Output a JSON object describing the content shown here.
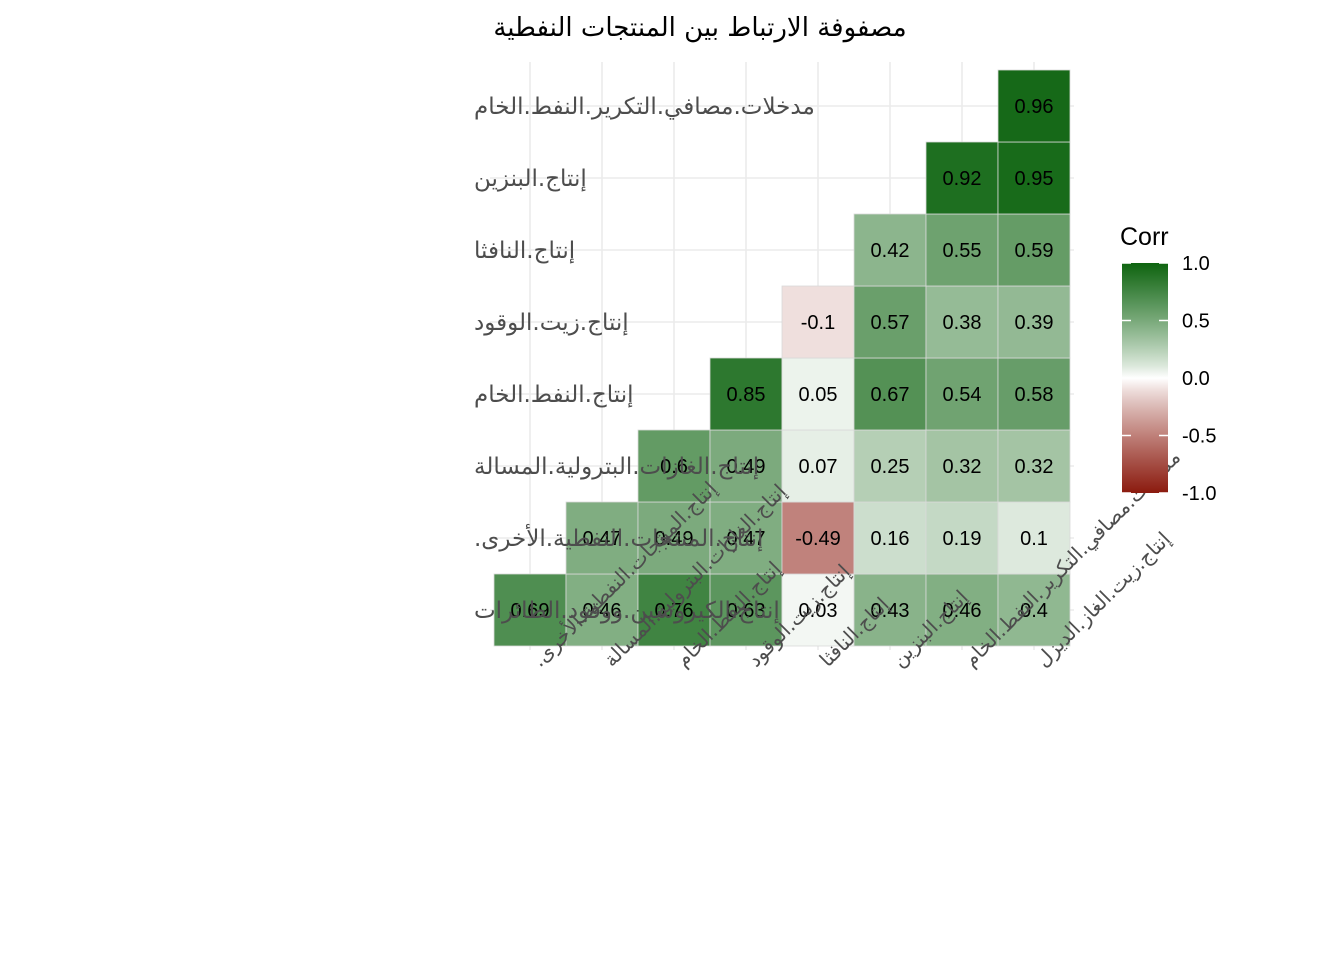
{
  "chart_data": {
    "type": "heatmap",
    "title": "مصفوفة الارتباط بين المنتجات النفطية",
    "x_categories": [
      "إنتاج.المنتجات.النفطية.الأخرى.",
      "إنتاج.الغازات.البترولية.المسالة",
      "إنتاج.النفط.الخام",
      "إنتاج.زيت.الوقود",
      "إنتاج.النافثا",
      "إنتاج.البنزين",
      "مدخلات.مصافي.التكرير.النفط.الخام",
      "إنتاج.زيت.الغاز.الديزل"
    ],
    "y_categories": [
      "إنتاج.الكيروسين.ووقود.الطائرات",
      "إنتاج.المنتجات.النفطية.الأخرى.",
      "إنتاج.الغازات.البترولية.المسالة",
      "إنتاج.النفط.الخام",
      "إنتاج.زيت.الوقود",
      "إنتاج.النافثا",
      "إنتاج.البنزين",
      "مدخلات.مصافي.التكرير.النفط.الخام"
    ],
    "cells": [
      {
        "x": "إنتاج.المنتجات.النفطية.الأخرى.",
        "y": "إنتاج.الكيروسين.ووقود.الطائرات",
        "value": 0.69,
        "label": "0.69"
      },
      {
        "x": "إنتاج.الغازات.البترولية.المسالة",
        "y": "إنتاج.الكيروسين.ووقود.الطائرات",
        "value": 0.46,
        "label": "0.46"
      },
      {
        "x": "إنتاج.النفط.الخام",
        "y": "إنتاج.الكيروسين.ووقود.الطائرات",
        "value": 0.76,
        "label": "0.76"
      },
      {
        "x": "إنتاج.زيت.الوقود",
        "y": "إنتاج.الكيروسين.ووقود.الطائرات",
        "value": 0.63,
        "label": "0.63"
      },
      {
        "x": "إنتاج.النافثا",
        "y": "إنتاج.الكيروسين.ووقود.الطائرات",
        "value": 0.03,
        "label": "0.03"
      },
      {
        "x": "إنتاج.البنزين",
        "y": "إنتاج.الكيروسين.ووقود.الطائرات",
        "value": 0.43,
        "label": "0.43"
      },
      {
        "x": "مدخلات.مصافي.التكرير.النفط.الخام",
        "y": "إنتاج.الكيروسين.ووقود.الطائرات",
        "value": 0.46,
        "label": "0.46"
      },
      {
        "x": "إنتاج.زيت.الغاز.الديزل",
        "y": "إنتاج.الكيروسين.ووقود.الطائرات",
        "value": 0.4,
        "label": "0.4"
      },
      {
        "x": "إنتاج.الغازات.البترولية.المسالة",
        "y": "إنتاج.المنتجات.النفطية.الأخرى.",
        "value": 0.47,
        "label": "0.47"
      },
      {
        "x": "إنتاج.النفط.الخام",
        "y": "إنتاج.المنتجات.النفطية.الأخرى.",
        "value": 0.49,
        "label": "0.49"
      },
      {
        "x": "إنتاج.زيت.الوقود",
        "y": "إنتاج.المنتجات.النفطية.الأخرى.",
        "value": 0.47,
        "label": "0.47"
      },
      {
        "x": "إنتاج.النافثا",
        "y": "إنتاج.المنتجات.النفطية.الأخرى.",
        "value": -0.49,
        "label": "-0.49"
      },
      {
        "x": "إنتاج.البنزين",
        "y": "إنتاج.المنتجات.النفطية.الأخرى.",
        "value": 0.16,
        "label": "0.16"
      },
      {
        "x": "مدخلات.مصافي.التكرير.النفط.الخام",
        "y": "إنتاج.المنتجات.النفطية.الأخرى.",
        "value": 0.19,
        "label": "0.19"
      },
      {
        "x": "إنتاج.زيت.الغاز.الديزل",
        "y": "إنتاج.المنتجات.النفطية.الأخرى.",
        "value": 0.1,
        "label": "0.1"
      },
      {
        "x": "إنتاج.النفط.الخام",
        "y": "إنتاج.الغازات.البترولية.المسالة",
        "value": 0.6,
        "label": "0.6"
      },
      {
        "x": "إنتاج.زيت.الوقود",
        "y": "إنتاج.الغازات.البترولية.المسالة",
        "value": 0.49,
        "label": "0.49"
      },
      {
        "x": "إنتاج.النافثا",
        "y": "إنتاج.الغازات.البترولية.المسالة",
        "value": 0.07,
        "label": "0.07"
      },
      {
        "x": "إنتاج.البنزين",
        "y": "إنتاج.الغازات.البترولية.المسالة",
        "value": 0.25,
        "label": "0.25"
      },
      {
        "x": "مدخلات.مصافي.التكرير.النفط.الخام",
        "y": "إنتاج.الغازات.البترولية.المسالة",
        "value": 0.32,
        "label": "0.32"
      },
      {
        "x": "إنتاج.زيت.الغاز.الديزل",
        "y": "إنتاج.الغازات.البترولية.المسالة",
        "value": 0.32,
        "label": "0.32"
      },
      {
        "x": "إنتاج.زيت.الوقود",
        "y": "إنتاج.النفط.الخام",
        "value": 0.85,
        "label": "0.85"
      },
      {
        "x": "إنتاج.النافثا",
        "y": "إنتاج.النفط.الخام",
        "value": 0.05,
        "label": "0.05"
      },
      {
        "x": "إنتاج.البنزين",
        "y": "إنتاج.النفط.الخام",
        "value": 0.67,
        "label": "0.67"
      },
      {
        "x": "مدخلات.مصافي.التكرير.النفط.الخام",
        "y": "إنتاج.النفط.الخام",
        "value": 0.54,
        "label": "0.54"
      },
      {
        "x": "إنتاج.زيت.الغاز.الديزل",
        "y": "إنتاج.النفط.الخام",
        "value": 0.58,
        "label": "0.58"
      },
      {
        "x": "إنتاج.النافثا",
        "y": "إنتاج.زيت.الوقود",
        "value": -0.1,
        "label": "-0.1"
      },
      {
        "x": "إنتاج.البنزين",
        "y": "إنتاج.زيت.الوقود",
        "value": 0.57,
        "label": "0.57"
      },
      {
        "x": "مدخلات.مصافي.التكرير.النفط.الخام",
        "y": "إنتاج.زيت.الوقود",
        "value": 0.38,
        "label": "0.38"
      },
      {
        "x": "إنتاج.زيت.الغاز.الديزل",
        "y": "إنتاج.زيت.الوقود",
        "value": 0.39,
        "label": "0.39"
      },
      {
        "x": "إنتاج.البنزين",
        "y": "إنتاج.النافثا",
        "value": 0.42,
        "label": "0.42"
      },
      {
        "x": "مدخلات.مصافي.التكرير.النفط.الخام",
        "y": "إنتاج.النافثا",
        "value": 0.55,
        "label": "0.55"
      },
      {
        "x": "إنتاج.زيت.الغاز.الديزل",
        "y": "إنتاج.النافثا",
        "value": 0.59,
        "label": "0.59"
      },
      {
        "x": "مدخلات.مصافي.التكرير.النفط.الخام",
        "y": "إنتاج.البنزين",
        "value": 0.92,
        "label": "0.92"
      },
      {
        "x": "إنتاج.زيت.الغاز.الديزل",
        "y": "إنتاج.البنزين",
        "value": 0.95,
        "label": "0.95"
      },
      {
        "x": "إنتاج.زيت.الغاز.الديزل",
        "y": "مدخلات.مصافي.التكرير.النفط.الخام",
        "value": 0.96,
        "label": "0.96"
      }
    ],
    "color_scale": {
      "low": "#8b1a0e",
      "mid": "#ffffff",
      "high": "#0e6410",
      "limits": [
        -1,
        1
      ]
    },
    "legend": {
      "title": "Corr",
      "position": "right",
      "ticks": [
        {
          "value": 1.0,
          "label": "1.0"
        },
        {
          "value": 0.5,
          "label": "0.5"
        },
        {
          "value": 0.0,
          "label": "0.0"
        },
        {
          "value": -0.5,
          "label": "-0.5"
        },
        {
          "value": -1.0,
          "label": "-1.0"
        }
      ]
    },
    "grid": true
  }
}
